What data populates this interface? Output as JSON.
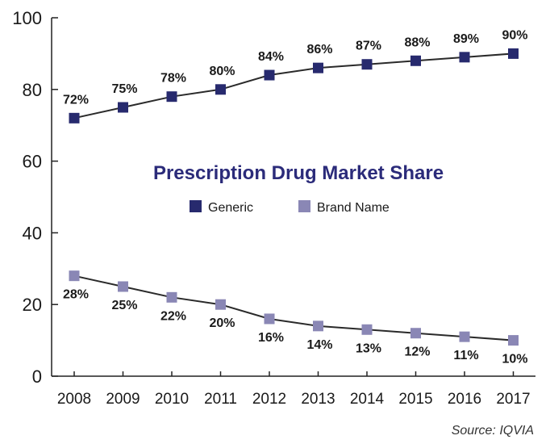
{
  "chart_data": {
    "type": "line",
    "title": "Prescription Drug Market Share",
    "source": "Source: IQVIA",
    "xlabel": "",
    "ylabel": "",
    "ylim": [
      0,
      100
    ],
    "yticks": [
      "0",
      "20",
      "40",
      "60",
      "80",
      "100"
    ],
    "categories": [
      "2008",
      "2009",
      "2010",
      "2011",
      "2012",
      "2013",
      "2014",
      "2015",
      "2016",
      "2017"
    ],
    "grid": false,
    "legend_position": "center",
    "series": [
      {
        "name": "Generic",
        "color": "#272a6e",
        "values": [
          72,
          75,
          78,
          80,
          84,
          86,
          87,
          88,
          89,
          90
        ],
        "labels": [
          "72%",
          "75%",
          "78%",
          "80%",
          "84%",
          "86%",
          "87%",
          "88%",
          "89%",
          "90%"
        ]
      },
      {
        "name": "Brand Name",
        "color": "#8a87b5",
        "values": [
          28,
          25,
          22,
          20,
          16,
          14,
          13,
          12,
          11,
          10
        ],
        "labels": [
          "28%",
          "25%",
          "22%",
          "20%",
          "16%",
          "14%",
          "13%",
          "12%",
          "11%",
          "10%"
        ]
      }
    ]
  }
}
